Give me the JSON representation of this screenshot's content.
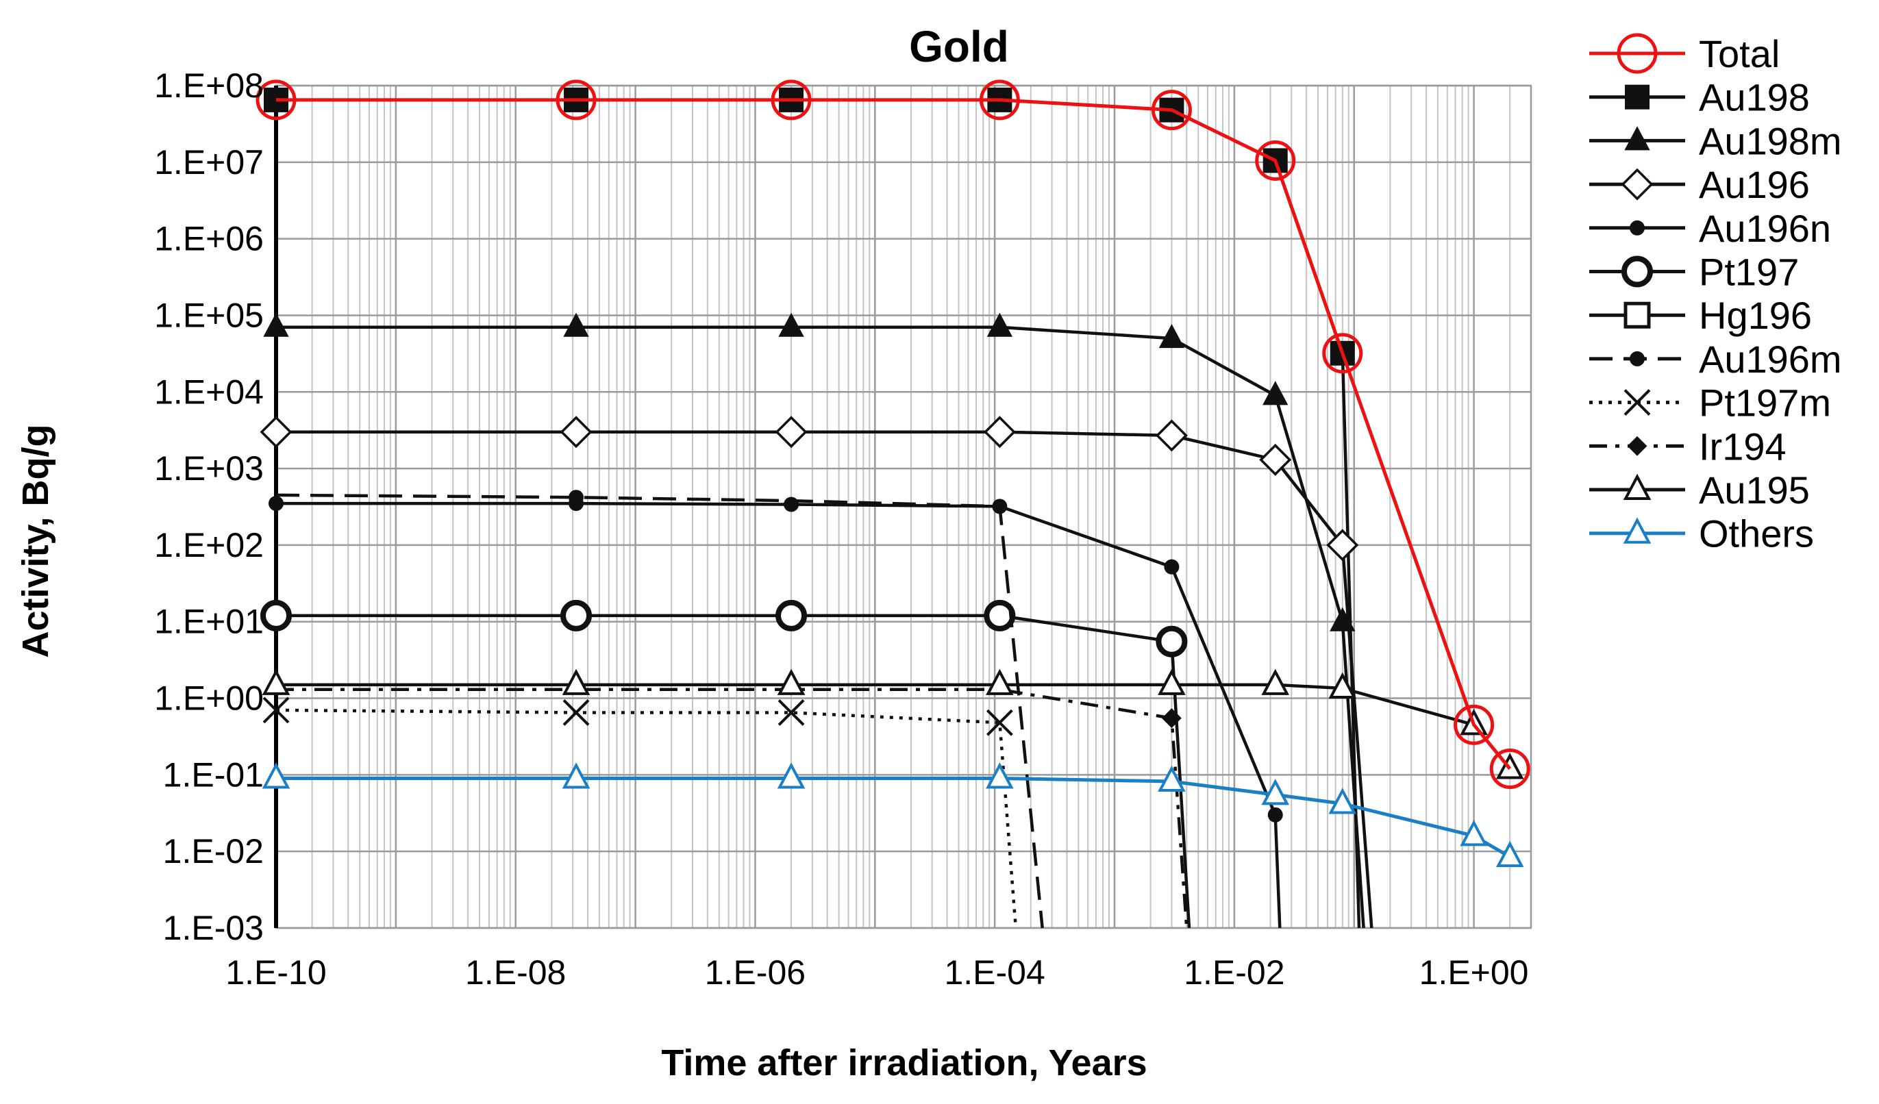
{
  "chart_data": {
    "type": "line",
    "title": "Gold",
    "xlabel": "Time after irradiation, Years",
    "ylabel": "Activity, Bq/g",
    "xscale": "log",
    "yscale": "log",
    "xlim": [
      1e-10,
      3
    ],
    "ylim": [
      0.001,
      100000000
    ],
    "grid": true,
    "legend": "right",
    "xticks": [
      {
        "value": 1e-10,
        "label": "1.E-10"
      },
      {
        "value": 1e-08,
        "label": "1.E-08"
      },
      {
        "value": 1e-06,
        "label": "1.E-06"
      },
      {
        "value": 0.0001,
        "label": "1.E-04"
      },
      {
        "value": 0.01,
        "label": "1.E-02"
      },
      {
        "value": 1,
        "label": "1.E+00"
      }
    ],
    "yticks": [
      {
        "value": 100000000.0,
        "label": "1.E+08"
      },
      {
        "value": 10000000.0,
        "label": "1.E+07"
      },
      {
        "value": 1000000.0,
        "label": "1.E+06"
      },
      {
        "value": 100000.0,
        "label": "1.E+05"
      },
      {
        "value": 10000.0,
        "label": "1.E+04"
      },
      {
        "value": 1000.0,
        "label": "1.E+03"
      },
      {
        "value": 100.0,
        "label": "1.E+02"
      },
      {
        "value": 10.0,
        "label": "1.E+01"
      },
      {
        "value": 1,
        "label": "1.E+00"
      },
      {
        "value": 0.1,
        "label": "1.E-01"
      },
      {
        "value": 0.01,
        "label": "1.E-02"
      },
      {
        "value": 0.001,
        "label": "1.E-03"
      }
    ],
    "series": [
      {
        "name": "Total",
        "color": "#ee1111",
        "dash": "solid",
        "marker": "circle-open",
        "x": [
          1e-10,
          3.2e-08,
          2e-06,
          0.00011,
          0.003,
          0.022,
          0.08,
          1.0,
          2.0
        ],
        "y": [
          65000000.0,
          65000000.0,
          65000000.0,
          65000000.0,
          48000000.0,
          10500000.0,
          32000.0,
          0.45,
          0.12
        ],
        "show_markers": [
          true,
          true,
          true,
          true,
          true,
          true,
          true,
          true,
          true
        ]
      },
      {
        "name": "Au198",
        "color": "#111111",
        "dash": "solid",
        "marker": "square",
        "x": [
          1e-10,
          3.2e-08,
          2e-06,
          0.00011,
          0.003,
          0.022,
          0.08,
          0.11
        ],
        "y": [
          65000000.0,
          65000000.0,
          65000000.0,
          65000000.0,
          48000000.0,
          10500000.0,
          32000.0,
          0.001
        ],
        "show_markers": [
          true,
          true,
          true,
          true,
          true,
          true,
          true,
          false
        ]
      },
      {
        "name": "Au198m",
        "color": "#111111",
        "dash": "solid",
        "marker": "triangle",
        "x": [
          1e-10,
          3.2e-08,
          2e-06,
          0.00011,
          0.003,
          0.022,
          0.08,
          0.12
        ],
        "y": [
          70000.0,
          70000.0,
          70000.0,
          70000.0,
          50000.0,
          9000.0,
          10,
          0.001
        ],
        "show_markers": [
          true,
          true,
          true,
          true,
          true,
          true,
          true,
          false
        ]
      },
      {
        "name": "Au196",
        "color": "#111111",
        "dash": "solid",
        "marker": "diamond-open",
        "x": [
          1e-10,
          3.2e-08,
          2e-06,
          0.00011,
          0.003,
          0.022,
          0.08,
          0.14
        ],
        "y": [
          3000.0,
          3000.0,
          3000.0,
          3000.0,
          2700.0,
          1300.0,
          100,
          0.001
        ],
        "show_markers": [
          true,
          true,
          true,
          true,
          true,
          true,
          true,
          false
        ]
      },
      {
        "name": "Au196n",
        "color": "#111111",
        "dash": "solid",
        "marker": "dot",
        "x": [
          1e-10,
          3.2e-08,
          2e-06,
          0.00011,
          0.003,
          0.022,
          0.024
        ],
        "y": [
          350,
          350,
          340,
          320,
          52,
          0.03,
          0.001
        ],
        "show_markers": [
          true,
          true,
          true,
          true,
          true,
          true,
          false
        ]
      },
      {
        "name": "Pt197",
        "color": "#111111",
        "dash": "solid",
        "marker": "circle-open-thick",
        "x": [
          1e-10,
          3.2e-08,
          2e-06,
          0.00011,
          0.003,
          0.0042
        ],
        "y": [
          12,
          12,
          12,
          12,
          5.5,
          0.001
        ],
        "show_markers": [
          true,
          true,
          true,
          true,
          true,
          false
        ]
      },
      {
        "name": "Hg196",
        "color": "#111111",
        "dash": "solid",
        "marker": "square-open",
        "x": [],
        "y": [],
        "show_markers": []
      },
      {
        "name": "Au196m",
        "color": "#111111",
        "dash": "long-dash",
        "marker": "dot",
        "x": [
          1e-10,
          3.2e-08,
          2e-06,
          0.00011,
          0.00025
        ],
        "y": [
          450,
          420,
          380,
          320,
          0.001
        ],
        "show_markers": [
          false,
          true,
          false,
          false,
          false
        ]
      },
      {
        "name": "Pt197m",
        "color": "#111111",
        "dash": "dotted",
        "marker": "x",
        "x": [
          1e-10,
          3.2e-08,
          2e-06,
          0.00011,
          0.00015
        ],
        "y": [
          0.7,
          0.65,
          0.65,
          0.48,
          0.001
        ],
        "show_markers": [
          true,
          true,
          true,
          true,
          false
        ]
      },
      {
        "name": "Ir194",
        "color": "#111111",
        "dash": "dash-dot",
        "marker": "diamond",
        "x": [
          1e-10,
          3.2e-08,
          2e-06,
          0.00011,
          0.003,
          0.004
        ],
        "y": [
          1.3,
          1.3,
          1.3,
          1.3,
          0.55,
          0.001
        ],
        "show_markers": [
          false,
          false,
          false,
          false,
          true,
          false
        ]
      },
      {
        "name": "Au195",
        "color": "#111111",
        "dash": "solid",
        "marker": "triangle-open",
        "x": [
          1e-10,
          3.2e-08,
          2e-06,
          0.00011,
          0.003,
          0.022,
          0.08,
          1.0,
          2.0
        ],
        "y": [
          1.5,
          1.5,
          1.5,
          1.5,
          1.5,
          1.5,
          1.35,
          0.45,
          0.12
        ],
        "show_markers": [
          true,
          true,
          true,
          true,
          true,
          true,
          true,
          true,
          true
        ]
      },
      {
        "name": "Others",
        "color": "#1a7fc4",
        "dash": "solid",
        "marker": "triangle-open",
        "x": [
          1e-10,
          3.2e-08,
          2e-06,
          0.00011,
          0.003,
          0.022,
          0.08,
          1.0,
          2.0
        ],
        "y": [
          0.09,
          0.09,
          0.09,
          0.09,
          0.082,
          0.055,
          0.042,
          0.016,
          0.0085
        ],
        "show_markers": [
          true,
          true,
          true,
          true,
          true,
          true,
          true,
          true,
          true
        ]
      }
    ]
  }
}
